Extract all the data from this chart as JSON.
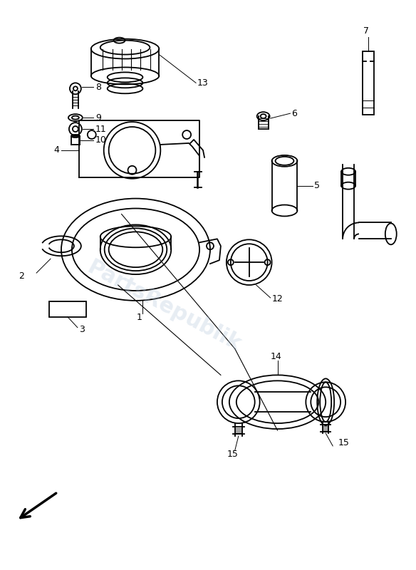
{
  "background_color": "#ffffff",
  "watermark_text": "PartsRepublik",
  "watermark_color": "#b0c4d8",
  "watermark_alpha": 0.3,
  "line_color": "#000000",
  "line_width": 1.3,
  "label_fontsize": 9,
  "figsize": [
    5.84,
    8.0
  ],
  "dpi": 100
}
